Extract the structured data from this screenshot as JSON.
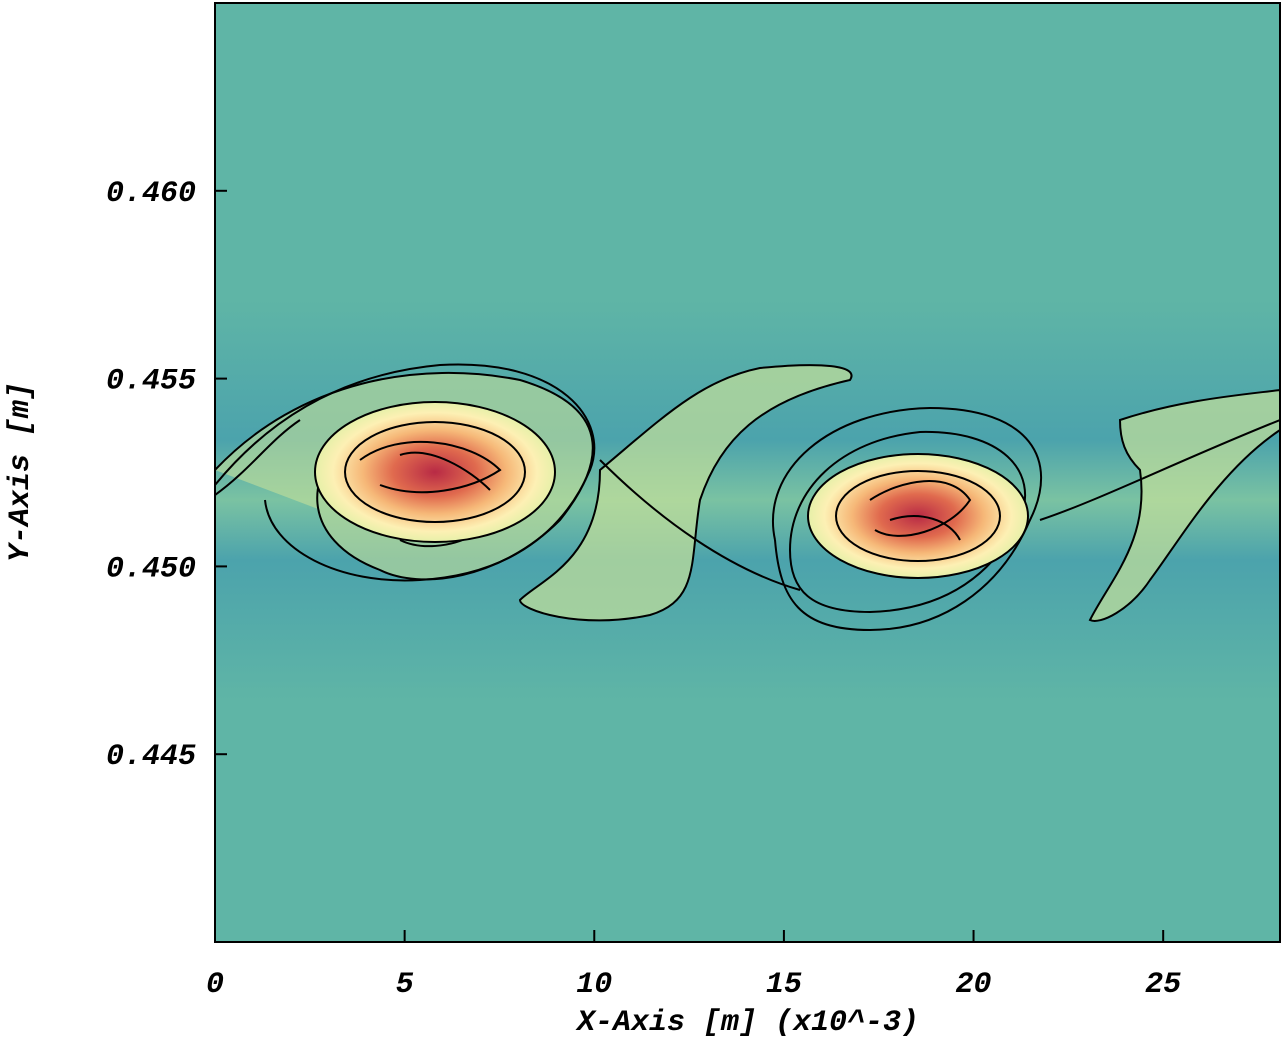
{
  "chart_data": {
    "type": "contour",
    "xlabel": "X-Axis [m] (x10^-3)",
    "ylabel": "Y-Axis [m]",
    "xlim": [
      0,
      28.08
    ],
    "ylim": [
      0.44,
      0.465
    ],
    "xticks": [
      0,
      5,
      10,
      15,
      20,
      25
    ],
    "yticks": [
      {
        "value": 0.445,
        "label": "0.445"
      },
      {
        "value": 0.45,
        "label": "0.450"
      },
      {
        "value": 0.455,
        "label": "0.455"
      },
      {
        "value": 0.46,
        "label": "0.460"
      }
    ]
  }
}
